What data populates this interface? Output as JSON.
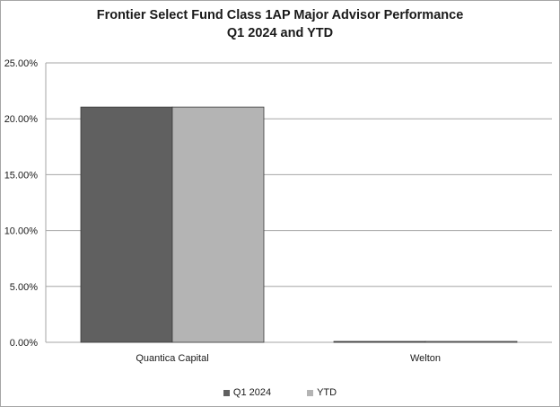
{
  "chart_data": {
    "type": "bar",
    "title_line1": "Frontier Select Fund Class 1AP Major Advisor Performance",
    "title_line2": "Q1 2024 and YTD",
    "categories": [
      "Quantica Capital",
      "Welton"
    ],
    "series": [
      {
        "name": "Q1 2024",
        "values": [
          21.05,
          0.05
        ],
        "color": "#606060"
      },
      {
        "name": "YTD",
        "values": [
          21.05,
          0.05
        ],
        "color": "#b4b4b4"
      }
    ],
    "ylim": [
      0,
      25
    ],
    "yticks": [
      0,
      5,
      10,
      15,
      20,
      25
    ],
    "ytick_labels": [
      "0.00%",
      "5.00%",
      "10.00%",
      "15.00%",
      "20.00%",
      "25.00%"
    ],
    "grid": true,
    "legend_position": "bottom"
  }
}
